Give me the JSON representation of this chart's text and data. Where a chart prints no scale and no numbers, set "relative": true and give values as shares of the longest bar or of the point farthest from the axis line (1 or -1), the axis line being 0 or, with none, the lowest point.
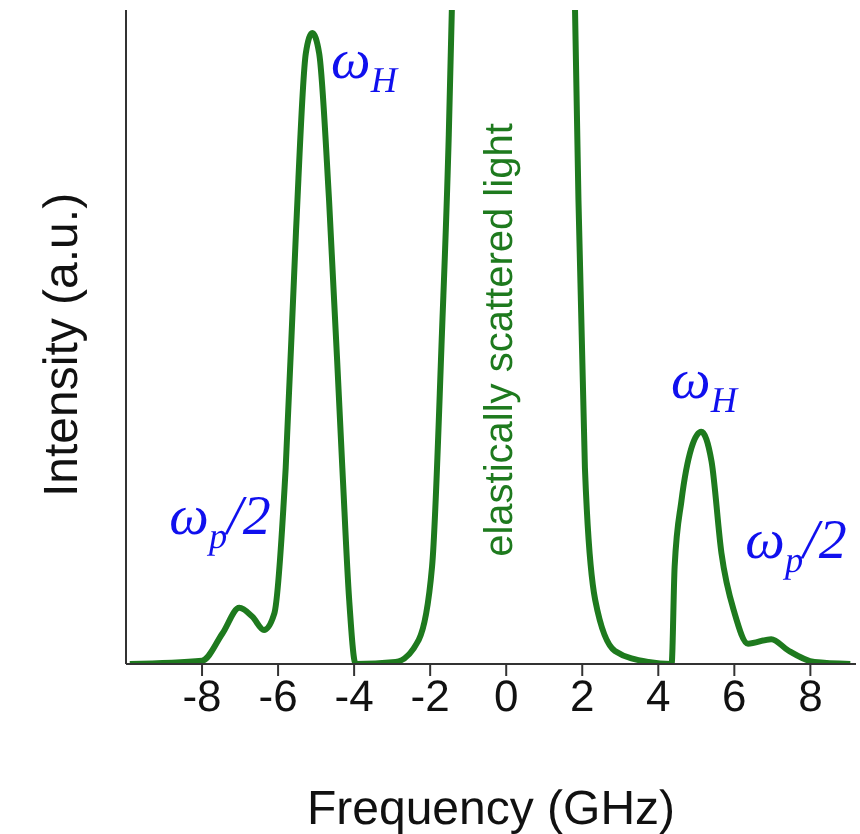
{
  "chart_data": {
    "type": "line",
    "relative": true,
    "xlabel": "Frequency (GHz)",
    "ylabel": "Intensity (a.u.)",
    "xlim": [
      -10,
      9.2
    ],
    "xticks": [
      -8,
      -6,
      -4,
      -2,
      0,
      2,
      4,
      6,
      8
    ],
    "marker": "none",
    "line_style": "solid",
    "x": [
      -9.9,
      -8.0,
      -7.46,
      -7.02,
      -6.67,
      -6.37,
      -6.1,
      -5.8,
      -5.53,
      -5.27,
      -5.1,
      -4.92,
      -4.66,
      -4.31,
      -4.13,
      -3.96,
      -2.91,
      -2.3,
      -1.95,
      -1.69,
      -1.51,
      -1.43,
      0,
      1.81,
      1.9,
      2.07,
      2.34,
      2.86,
      3.74,
      4.35,
      4.43,
      4.61,
      4.87,
      5.13,
      5.4,
      5.66,
      6.01,
      6.36,
      6.97,
      7.41,
      8.11,
      9.05
    ],
    "series": [
      {
        "color": "#1e7a1e",
        "values": [
          0,
          0.005,
          0.047,
          0.086,
          0.072,
          0.052,
          0.077,
          0.3,
          0.66,
          0.934,
          0.965,
          0.934,
          0.71,
          0.3,
          0.098,
          0,
          0.003,
          0.037,
          0.149,
          0.506,
          0.81,
          1.0,
          null,
          1.0,
          0.71,
          0.3,
          0.098,
          0.02,
          0.003,
          0,
          0.149,
          0.25,
          0.33,
          0.355,
          0.31,
          0.17,
          0.077,
          0.031,
          0.038,
          0.021,
          0.003,
          0
        ]
      }
    ],
    "annotations": [
      "elastically scattered light",
      "ω$_{H}$",
      "ω$_{H}$",
      "ω$_{p}$/2",
      "ω$_{p}$/2"
    ]
  }
}
